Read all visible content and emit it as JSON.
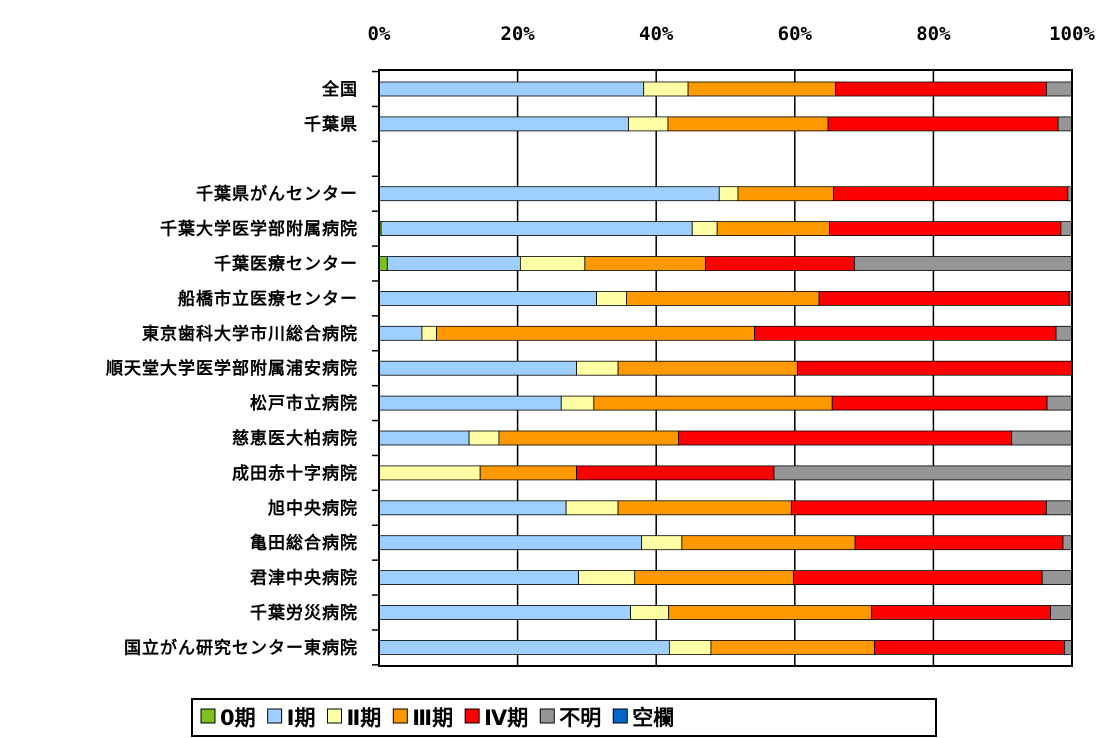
{
  "chart_data": {
    "type": "bar",
    "stacked": true,
    "percent": true,
    "orientation": "horizontal",
    "xlim": [
      0,
      100
    ],
    "x_ticks": [
      "0%",
      "20%",
      "40%",
      "60%",
      "80%",
      "100%"
    ],
    "grid": true,
    "legend_position": "bottom",
    "categories": [
      "全国",
      "千葉県",
      "",
      "千葉県がんセンター",
      "千葉大学医学部附属病院",
      "千葉医療センター",
      "船橋市立医療センター",
      "東京歯科大学市川総合病院",
      "順天堂大学医学部附属浦安病院",
      "松戸市立病院",
      "慈恵医大柏病院",
      "成田赤十字病院",
      "旭中央病院",
      "亀田総合病院",
      "君津中央病院",
      "千葉労災病院",
      "国立がん研究センター東病院"
    ],
    "series": [
      {
        "name": "0期",
        "color": "#7fbf1f",
        "values": [
          0,
          0,
          null,
          0,
          0.3,
          1.2,
          0,
          0,
          0,
          0,
          0,
          0,
          0,
          0,
          0,
          0,
          0
        ]
      },
      {
        "name": "Ⅰ期",
        "color": "#9fcfff",
        "values": [
          38.2,
          36,
          null,
          49.1,
          44.9,
          19.2,
          31.4,
          6.2,
          28.5,
          26.3,
          13,
          0,
          27,
          37.9,
          28.8,
          36.3,
          41.9
        ]
      },
      {
        "name": "Ⅱ期",
        "color": "#ffffa6",
        "values": [
          6.4,
          5.7,
          null,
          2.7,
          3.6,
          9.3,
          4.3,
          2.1,
          6,
          4.7,
          4.3,
          14.6,
          7.5,
          5.8,
          8.1,
          5.5,
          6
        ]
      },
      {
        "name": "Ⅲ期",
        "color": "#ff9900",
        "values": [
          21.3,
          23.1,
          null,
          13.8,
          16.2,
          17.4,
          27.8,
          45.9,
          25.9,
          34.4,
          25.9,
          13.9,
          25,
          25,
          22.9,
          29.3,
          23.6
        ]
      },
      {
        "name": "Ⅳ期",
        "color": "#ff0000",
        "values": [
          30.4,
          33.2,
          null,
          33.8,
          33.4,
          21.5,
          36.1,
          43.5,
          39.6,
          31,
          48.1,
          28.5,
          36.8,
          30,
          35.9,
          25.8,
          27.4
        ]
      },
      {
        "name": "不明",
        "color": "#969696",
        "values": [
          3.7,
          2,
          null,
          0.6,
          1.6,
          31.4,
          0.4,
          2.3,
          0,
          3.6,
          8.7,
          43,
          3.7,
          1.3,
          4.3,
          3.1,
          1.1
        ]
      },
      {
        "name": "空欄",
        "color": "#0066cc",
        "values": [
          0,
          0,
          null,
          0,
          0,
          0,
          0,
          0,
          0,
          0,
          0,
          0,
          0,
          0,
          0,
          0,
          0
        ]
      }
    ]
  }
}
